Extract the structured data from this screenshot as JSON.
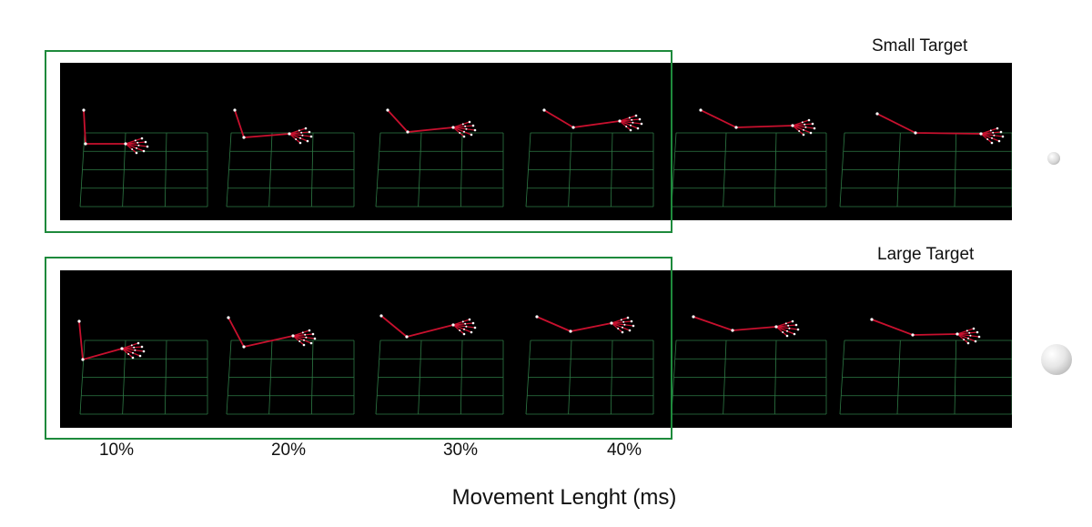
{
  "rows": [
    {
      "title": "Small Target",
      "target_size": "small"
    },
    {
      "title": "Large Target",
      "target_size": "large"
    }
  ],
  "percent_labels": [
    "10%",
    "20%",
    "30%",
    "40%"
  ],
  "x_axis_title": "Movement Lenght (ms)",
  "colors": {
    "background": "#ffffff",
    "frame_background": "#000000",
    "grid": "#2e7a45",
    "arm": "#c8102e",
    "joint": "#ffffff",
    "highlight_box": "#1e8a3c"
  }
}
